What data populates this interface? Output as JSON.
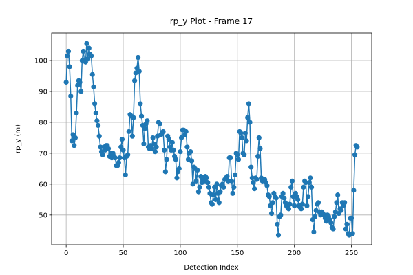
{
  "chart_data": {
    "type": "line",
    "title": "rp_y Plot - Frame 17",
    "x_label": "Detection Index",
    "y_label": "rp_y (m)",
    "color": "#1f77b4",
    "grid": true,
    "marker": "o",
    "values": [
      93,
      101.5,
      103,
      98,
      88.5,
      74,
      76,
      72.5,
      75,
      83,
      92,
      93.5,
      93,
      90,
      100,
      103,
      100,
      99.5,
      105.5,
      100.5,
      104,
      102,
      101.5,
      95.5,
      91.5,
      86,
      83,
      80.5,
      79,
      75.5,
      72,
      70.5,
      69.5,
      72,
      71,
      72.5,
      72.5,
      71.5,
      69,
      70,
      68.5,
      70,
      69,
      68.5,
      66,
      66,
      67,
      68.5,
      72,
      74.5,
      71,
      68.5,
      63,
      69,
      69.5,
      77,
      82.5,
      82,
      75.5,
      81.5,
      93.5,
      96,
      97.5,
      101,
      96.5,
      86,
      82,
      79,
      73,
      78,
      79.5,
      80.5,
      72,
      71.5,
      72.5,
      71.5,
      75,
      73,
      70.5,
      72,
      75.5,
      80,
      79.5,
      76,
      76.5,
      77,
      71,
      64,
      68,
      75.5,
      74.5,
      72,
      71,
      73.5,
      71,
      69,
      68,
      62,
      64,
      65,
      70.5,
      75,
      77.5,
      77.5,
      76,
      77,
      72,
      68,
      70,
      70.5,
      67.5,
      60,
      65.5,
      65,
      61,
      64.5,
      57.5,
      59,
      62.5,
      60.5,
      62,
      61,
      62.5,
      62,
      60.5,
      59,
      57,
      54,
      53.5,
      56.5,
      59,
      55,
      60,
      57,
      54,
      57.5,
      59.5,
      60,
      59,
      61.5,
      62,
      62.5,
      61,
      68.5,
      68.5,
      61,
      57,
      59,
      63,
      70,
      69.5,
      68,
      77,
      76.5,
      75,
      70,
      69.5,
      76.5,
      74,
      81.5,
      86,
      80,
      65.5,
      62,
      60.5,
      58.5,
      62,
      61.5,
      69,
      75,
      71.5,
      62,
      61,
      61.5,
      61.5,
      60.5,
      59.5,
      56.5,
      56,
      53,
      50.5,
      54,
      57,
      56,
      55.5,
      47,
      43.5,
      49.5,
      50,
      56,
      57,
      55.5,
      54,
      53,
      52.5,
      52,
      53.5,
      59,
      61,
      56,
      53,
      57,
      56,
      55,
      53,
      52.5,
      52,
      53.5,
      59,
      61,
      60.5,
      53,
      56,
      60.5,
      62,
      59,
      48.5,
      44.5,
      49.5,
      51.5,
      53.5,
      54,
      51,
      50,
      51,
      50.5,
      50,
      49,
      48,
      50,
      49.5,
      48.5,
      47.5,
      46,
      45.5,
      49.5,
      51,
      54,
      56.5,
      50.5,
      52,
      51.5,
      54,
      53,
      54,
      45.5,
      47,
      44,
      43.5,
      49,
      49,
      44,
      58,
      69.5,
      72.5,
      72
    ],
    "xlim": [
      -12.75,
      267.75
    ],
    "xticks": [
      0,
      50,
      100,
      150,
      200,
      250
    ],
    "ylim": [
      40.4,
      108.9
    ],
    "yticks": [
      50,
      60,
      70,
      80,
      90,
      100
    ]
  }
}
